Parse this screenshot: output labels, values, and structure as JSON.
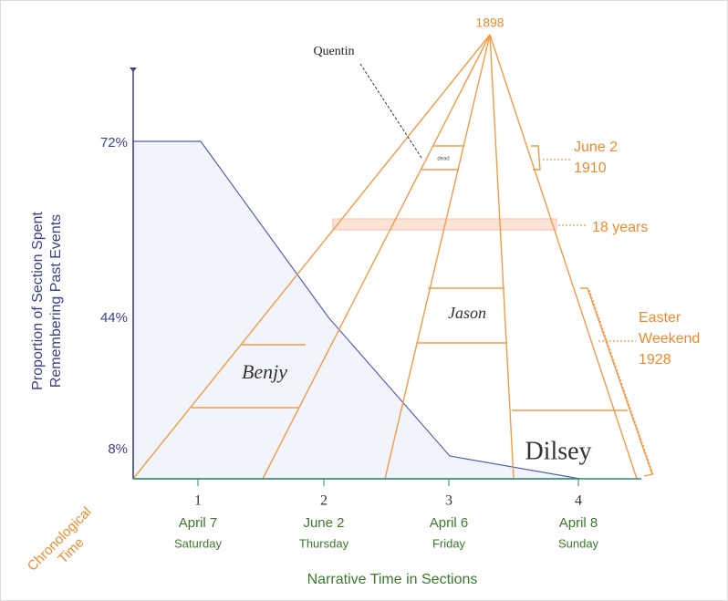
{
  "y_axis": {
    "label_lines": [
      "Proportion of Section Spent",
      "Remembering Past Events"
    ],
    "tick_labels": [
      "72%",
      "44%",
      "8%"
    ]
  },
  "x_axis": {
    "label": "Narrative Time in Sections",
    "corner_label_lines": [
      "Chronological",
      "Time"
    ],
    "sections": [
      {
        "number": "1",
        "date": "April 7",
        "weekday": "Saturday"
      },
      {
        "number": "2",
        "date": "June 2",
        "weekday": "Thursday"
      },
      {
        "number": "3",
        "date": "April 6",
        "weekday": "Friday"
      },
      {
        "number": "4",
        "date": "April 8",
        "weekday": "Sunday"
      }
    ]
  },
  "apex_label": "1898",
  "section_names": [
    "Benjy",
    "Quentin",
    "Jason",
    "Dilsey"
  ],
  "quentin_box_text": "dead",
  "annotations": {
    "june": [
      "June 2",
      "1910"
    ],
    "span": "18 years",
    "easter": [
      "Easter",
      "Weekend",
      "1928"
    ]
  }
}
